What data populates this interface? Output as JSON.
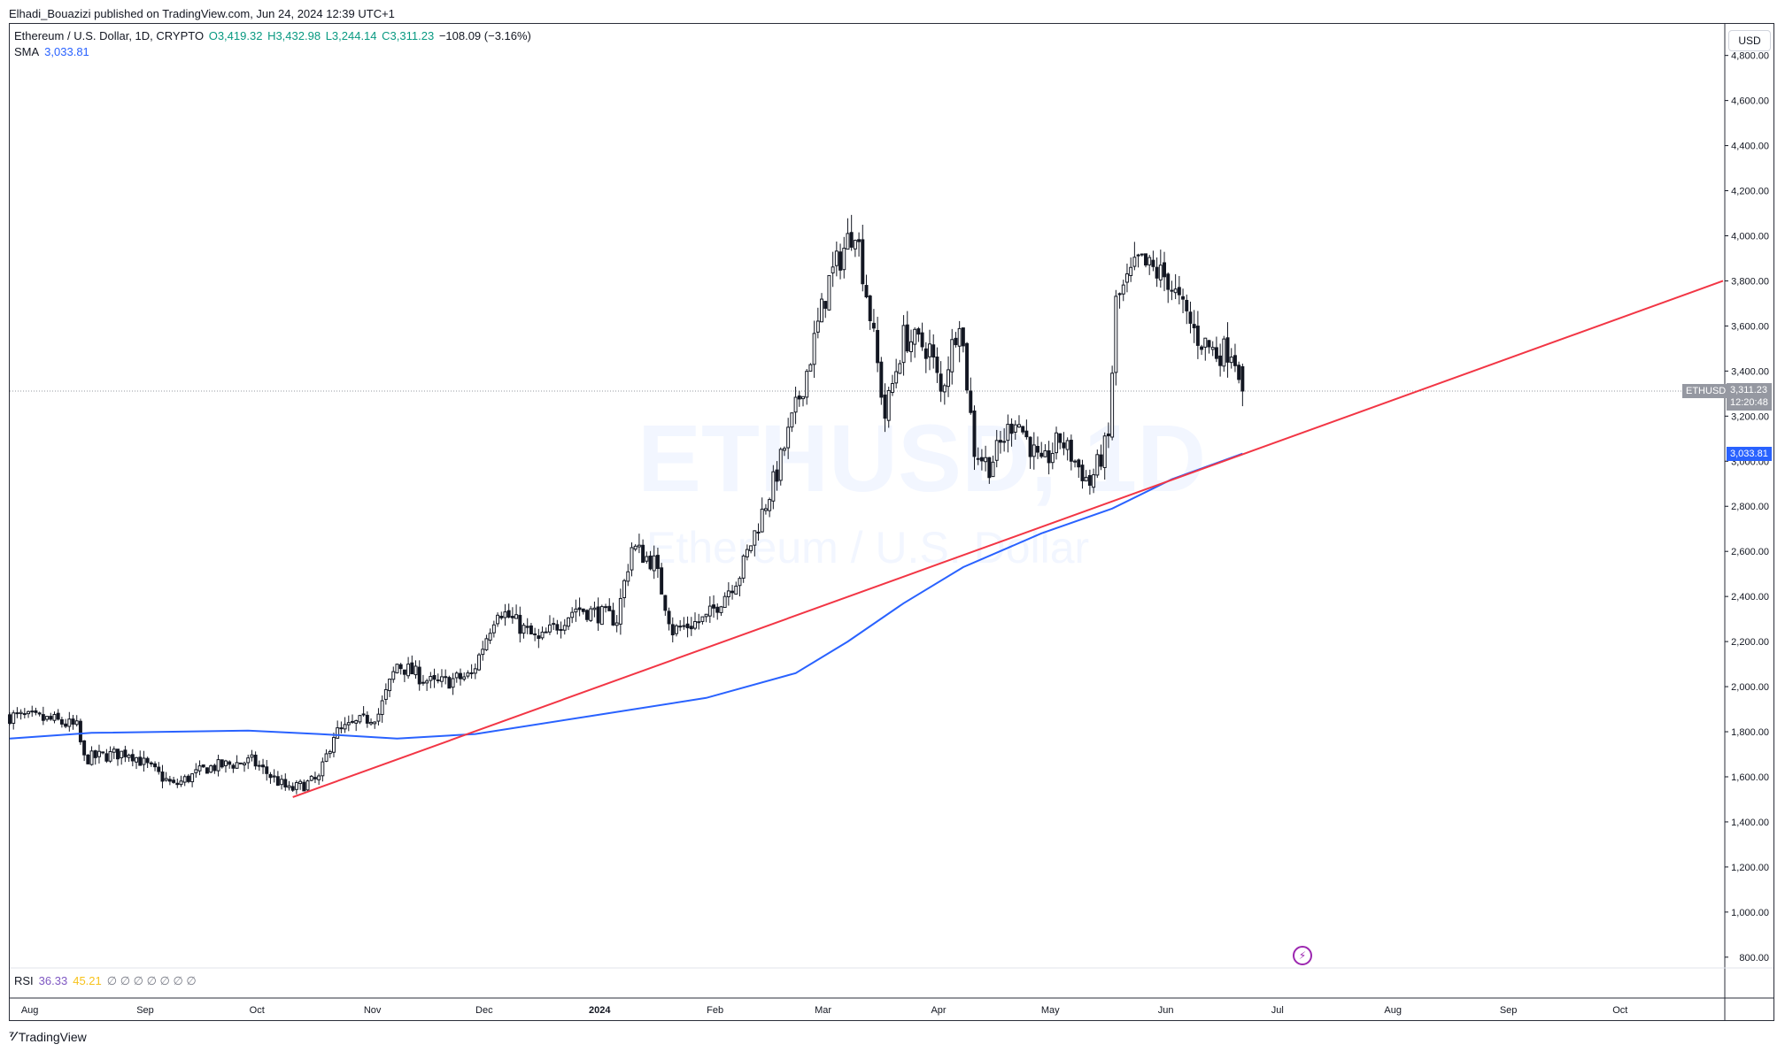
{
  "header": {
    "publisher_text": "Elhadi_Bouazizi published on TradingView.com, Jun 24, 2024 12:39 UTC+1"
  },
  "legend": {
    "symbol": "Ethereum / U.S. Dollar, 1D, CRYPTO",
    "open": "O3,419.32",
    "high": "H3,432.98",
    "low": "L3,244.14",
    "close": "C3,311.23",
    "change": "−108.09 (−3.16%)"
  },
  "sma": {
    "label": "SMA",
    "value": "3,033.81"
  },
  "rsi": {
    "label": "RSI",
    "value1": "36.33",
    "value2": "45.21"
  },
  "currency_button": "USD",
  "watermark": {
    "symbol": "ETHUSD, 1D",
    "name": "Ethereum / U.S. Dollar"
  },
  "price_labels": {
    "symbol_tag": "ETHUSD",
    "last_price": "3,311.23",
    "countdown": "12:20:48",
    "sma_price": "3,033.81"
  },
  "footer": {
    "brand": "TradingView"
  },
  "colors": {
    "up": "#089981",
    "down": "#131722",
    "sma": "#2962ff",
    "trendline": "#f23645",
    "current_tag": "#9598a1"
  },
  "chart_data": {
    "type": "candlestick",
    "symbol": "ETHUSD",
    "interval": "1D",
    "y_axis": {
      "ticks": [
        800,
        1000,
        1200,
        1400,
        1600,
        1800,
        2000,
        2200,
        2400,
        2600,
        2800,
        3000,
        3200,
        3400,
        3600,
        3800,
        4000,
        4200,
        4400,
        4600,
        4800
      ],
      "tick_labels": [
        "800.00",
        "1,000.00",
        "1,200.00",
        "1,400.00",
        "1,600.00",
        "1,800.00",
        "2,000.00",
        "2,200.00",
        "2,400.00",
        "2,600.00",
        "2,800.00",
        "3,000.00",
        "3,200.00",
        "3,400.00",
        "3,600.00",
        "3,800.00",
        "4,000.00",
        "4,200.00",
        "4,400.00",
        "4,600.00",
        "4,800.00"
      ],
      "range": [
        760,
        4940
      ]
    },
    "x_axis": {
      "labels": [
        "Aug",
        "Sep",
        "Oct",
        "Nov",
        "Dec",
        "2024",
        "Feb",
        "Mar",
        "Apr",
        "May",
        "Jun",
        "Jul",
        "Aug",
        "Sep",
        "Oct"
      ],
      "dates": [
        "2023-08-01",
        "2023-09-01",
        "2023-10-01",
        "2023-11-01",
        "2023-12-01",
        "2024-01-01",
        "2024-02-01",
        "2024-03-01",
        "2024-04-01",
        "2024-05-01",
        "2024-06-01",
        "2024-07-01",
        "2024-08-01",
        "2024-09-01",
        "2024-10-01"
      ],
      "range": [
        "2023-07-29",
        "2024-10-31"
      ]
    },
    "price_anchors": [
      {
        "date": "2023-07-29",
        "close": 1870
      },
      {
        "date": "2023-08-10",
        "close": 1850
      },
      {
        "date": "2023-08-16",
        "close": 1820
      },
      {
        "date": "2023-08-18",
        "close": 1680
      },
      {
        "date": "2023-08-30",
        "close": 1710
      },
      {
        "date": "2023-09-11",
        "close": 1560
      },
      {
        "date": "2023-09-20",
        "close": 1640
      },
      {
        "date": "2023-10-02",
        "close": 1670
      },
      {
        "date": "2023-10-12",
        "close": 1540
      },
      {
        "date": "2023-10-20",
        "close": 1590
      },
      {
        "date": "2023-10-24",
        "close": 1790
      },
      {
        "date": "2023-11-05",
        "close": 1880
      },
      {
        "date": "2023-11-10",
        "close": 2100
      },
      {
        "date": "2023-11-20",
        "close": 2010
      },
      {
        "date": "2023-11-30",
        "close": 2050
      },
      {
        "date": "2023-12-07",
        "close": 2350
      },
      {
        "date": "2023-12-18",
        "close": 2200
      },
      {
        "date": "2023-12-28",
        "close": 2350
      },
      {
        "date": "2024-01-08",
        "close": 2300
      },
      {
        "date": "2024-01-12",
        "close": 2620
      },
      {
        "date": "2024-01-18",
        "close": 2550
      },
      {
        "date": "2024-01-23",
        "close": 2250
      },
      {
        "date": "2024-02-01",
        "close": 2300
      },
      {
        "date": "2024-02-10",
        "close": 2500
      },
      {
        "date": "2024-02-20",
        "close": 2950
      },
      {
        "date": "2024-02-28",
        "close": 3400
      },
      {
        "date": "2024-03-05",
        "close": 3800
      },
      {
        "date": "2024-03-12",
        "close": 4050
      },
      {
        "date": "2024-03-16",
        "close": 3650
      },
      {
        "date": "2024-03-20",
        "close": 3200
      },
      {
        "date": "2024-03-25",
        "close": 3550
      },
      {
        "date": "2024-04-01",
        "close": 3500
      },
      {
        "date": "2024-04-04",
        "close": 3300
      },
      {
        "date": "2024-04-09",
        "close": 3650
      },
      {
        "date": "2024-04-13",
        "close": 3050
      },
      {
        "date": "2024-04-17",
        "close": 2980
      },
      {
        "date": "2024-04-24",
        "close": 3200
      },
      {
        "date": "2024-05-01",
        "close": 2970
      },
      {
        "date": "2024-05-06",
        "close": 3100
      },
      {
        "date": "2024-05-14",
        "close": 2900
      },
      {
        "date": "2024-05-19",
        "close": 3100
      },
      {
        "date": "2024-05-21",
        "close": 3700
      },
      {
        "date": "2024-05-27",
        "close": 3880
      },
      {
        "date": "2024-06-04",
        "close": 3810
      },
      {
        "date": "2024-06-07",
        "close": 3700
      },
      {
        "date": "2024-06-12",
        "close": 3550
      },
      {
        "date": "2024-06-17",
        "close": 3480
      },
      {
        "date": "2024-06-21",
        "close": 3500
      },
      {
        "date": "2024-06-23",
        "close": 3419.32
      },
      {
        "date": "2024-06-24",
        "close": 3311.23
      }
    ],
    "last_candle": {
      "date": "2024-06-24",
      "open": 3419.32,
      "high": 3432.98,
      "low": 3244.14,
      "close": 3311.23
    },
    "sma_line": [
      {
        "date": "2023-07-29",
        "value": 1770
      },
      {
        "date": "2023-08-20",
        "value": 1795
      },
      {
        "date": "2023-10-01",
        "value": 1805
      },
      {
        "date": "2023-10-20",
        "value": 1790
      },
      {
        "date": "2023-11-10",
        "value": 1770
      },
      {
        "date": "2023-12-01",
        "value": 1790
      },
      {
        "date": "2024-01-01",
        "value": 1870
      },
      {
        "date": "2024-02-01",
        "value": 1950
      },
      {
        "date": "2024-02-25",
        "value": 2060
      },
      {
        "date": "2024-03-10",
        "value": 2200
      },
      {
        "date": "2024-03-25",
        "value": 2370
      },
      {
        "date": "2024-04-10",
        "value": 2530
      },
      {
        "date": "2024-05-01",
        "value": 2680
      },
      {
        "date": "2024-05-20",
        "value": 2790
      },
      {
        "date": "2024-06-05",
        "value": 2920
      },
      {
        "date": "2024-06-24",
        "value": 3033.81
      }
    ],
    "trendline": [
      {
        "date": "2023-10-13",
        "value": 1510
      },
      {
        "date": "2024-10-31",
        "value": 3800
      }
    ],
    "last_price_line": 3311.23
  }
}
